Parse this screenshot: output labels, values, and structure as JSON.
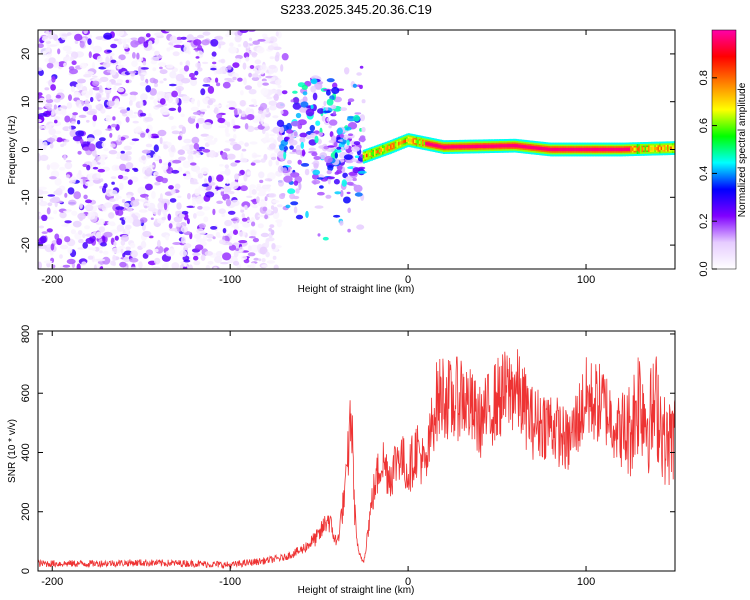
{
  "title": "S233.2025.345.20.36.C19",
  "chart_data": [
    {
      "type": "heatmap",
      "name": "spectrogram",
      "xlabel": "Height of straight line (km)",
      "ylabel": "Frequency (Hz)",
      "xlim": [
        -208,
        150
      ],
      "ylim": [
        -25,
        25
      ],
      "xticks": [
        -200,
        -100,
        0,
        100
      ],
      "xtick_labels": [
        "-200",
        "-100",
        "0",
        "100"
      ],
      "yticks": [
        -20,
        -10,
        0,
        10,
        20
      ],
      "ytick_labels": [
        "-20",
        "-10",
        "0",
        "10",
        "20"
      ],
      "colorbar": {
        "label": "Normalized spectral amplitude",
        "range": [
          0,
          1
        ],
        "ticks": [
          0.0,
          0.2,
          0.4,
          0.6,
          0.8
        ],
        "tick_labels": [
          "0.0",
          "0.2",
          "0.4",
          "0.6",
          "0.8"
        ],
        "colormap": [
          "#ffffff",
          "#e6ccff",
          "#8000ff",
          "#0000ff",
          "#00ffff",
          "#00ff00",
          "#ffff00",
          "#ff8000",
          "#ff0000",
          "#ff00aa"
        ]
      },
      "regions": [
        {
          "description": "noise",
          "x": [
            -208,
            -72
          ],
          "freq": [
            -25,
            25
          ],
          "amplitude": [
            0.02,
            0.3
          ]
        },
        {
          "description": "transition",
          "x": [
            -72,
            -25
          ],
          "freq": [
            -25,
            15
          ],
          "amplitude": [
            0.1,
            0.5
          ]
        },
        {
          "description": "signal band",
          "x": [
            -25,
            150
          ],
          "freq": [
            -2,
            2
          ],
          "amplitude": [
            0.4,
            1.0
          ]
        }
      ],
      "ridge": [
        {
          "x": -25,
          "freq": -1.5
        },
        {
          "x": -10,
          "freq": 0.5
        },
        {
          "x": 0,
          "freq": 2
        },
        {
          "x": 20,
          "freq": 0.5
        },
        {
          "x": 60,
          "freq": 0.8
        },
        {
          "x": 80,
          "freq": 0
        },
        {
          "x": 120,
          "freq": 0
        },
        {
          "x": 150,
          "freq": 0.3
        }
      ]
    },
    {
      "type": "line",
      "name": "snr",
      "xlabel": "Height of straight line (km)",
      "ylabel": "SNR (10 * v/v)",
      "xlim": [
        -208,
        150
      ],
      "ylim": [
        0,
        810
      ],
      "xticks": [
        -200,
        -100,
        0,
        100
      ],
      "xtick_labels": [
        "-200",
        "-100",
        "0",
        "100"
      ],
      "yticks": [
        0,
        200,
        400,
        600,
        800
      ],
      "ytick_labels": [
        "0",
        "200",
        "400",
        "600",
        "800"
      ],
      "color": "#ee3333",
      "x": [
        -208,
        -180,
        -150,
        -120,
        -100,
        -80,
        -70,
        -60,
        -50,
        -45,
        -40,
        -35,
        -32,
        -30,
        -28,
        -25,
        -20,
        -15,
        -10,
        -5,
        0,
        5,
        10,
        15,
        20,
        25,
        30,
        40,
        50,
        60,
        70,
        80,
        90,
        100,
        110,
        120,
        125,
        130,
        135,
        140,
        145,
        150
      ],
      "values": [
        25,
        25,
        28,
        25,
        20,
        35,
        45,
        70,
        120,
        180,
        90,
        280,
        550,
        200,
        60,
        30,
        250,
        380,
        320,
        400,
        330,
        420,
        340,
        560,
        600,
        560,
        600,
        500,
        580,
        620,
        500,
        500,
        430,
        580,
        560,
        460,
        480,
        600,
        500,
        560,
        420,
        460
      ]
    }
  ]
}
